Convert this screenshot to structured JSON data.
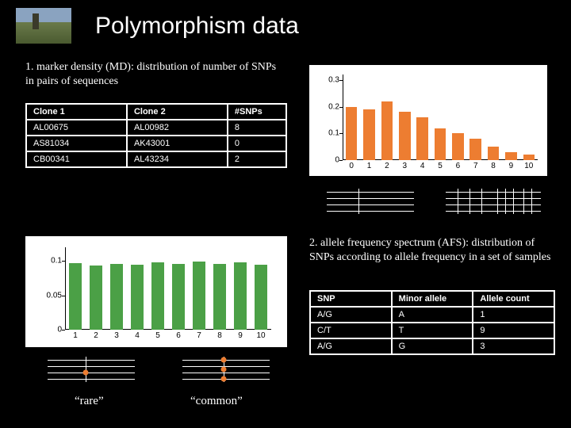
{
  "title": "Polymorphism data",
  "section1": {
    "text": "1. marker density (MD): distribution of number of SNPs in pairs of sequences",
    "table": {
      "columns": [
        "Clone 1",
        "Clone 2",
        "#SNPs"
      ],
      "rows": [
        [
          "AL00675",
          "AL00982",
          "8"
        ],
        [
          "AS81034",
          "AK43001",
          "0"
        ],
        [
          "CB00341",
          "AL43234",
          "2"
        ]
      ]
    }
  },
  "section2": {
    "text": "2. allele frequency spectrum (AFS): distribution of SNPs according to allele frequency in a set of samples",
    "table": {
      "columns": [
        "SNP",
        "Minor allele",
        "Allele count"
      ],
      "rows": [
        [
          "A/G",
          "A",
          "1"
        ],
        [
          "C/T",
          "T",
          "9"
        ],
        [
          "A/G",
          "G",
          "3"
        ]
      ]
    }
  },
  "chart1": {
    "type": "bar",
    "x": [
      0,
      1,
      2,
      3,
      4,
      5,
      6,
      7,
      8,
      9,
      10
    ],
    "values": [
      0.2,
      0.19,
      0.22,
      0.18,
      0.16,
      0.12,
      0.1,
      0.08,
      0.05,
      0.03,
      0.02
    ],
    "ylim": [
      0,
      0.32
    ],
    "yticks": [
      0,
      0.1,
      0.2,
      0.3
    ],
    "bar_color": "#ed7d31",
    "bg": "#ffffff",
    "axis_color": "#000000",
    "font_size": 10
  },
  "chart2": {
    "type": "bar",
    "x": [
      1,
      2,
      3,
      4,
      5,
      6,
      7,
      8,
      9,
      10
    ],
    "values": [
      0.097,
      0.094,
      0.096,
      0.095,
      0.098,
      0.096,
      0.099,
      0.096,
      0.098,
      0.095
    ],
    "ylim": [
      0,
      0.12
    ],
    "yticks": [
      0,
      0.05,
      0.1
    ],
    "bar_color": "#4ba046",
    "bg": "#ffffff",
    "axis_color": "#000000",
    "font_size": 10
  },
  "labels": {
    "rare": "“rare”",
    "common": "“common”"
  },
  "colors": {
    "bg": "#000000",
    "text": "#ffffff",
    "orange": "#ed7d31",
    "green": "#4ba046"
  }
}
